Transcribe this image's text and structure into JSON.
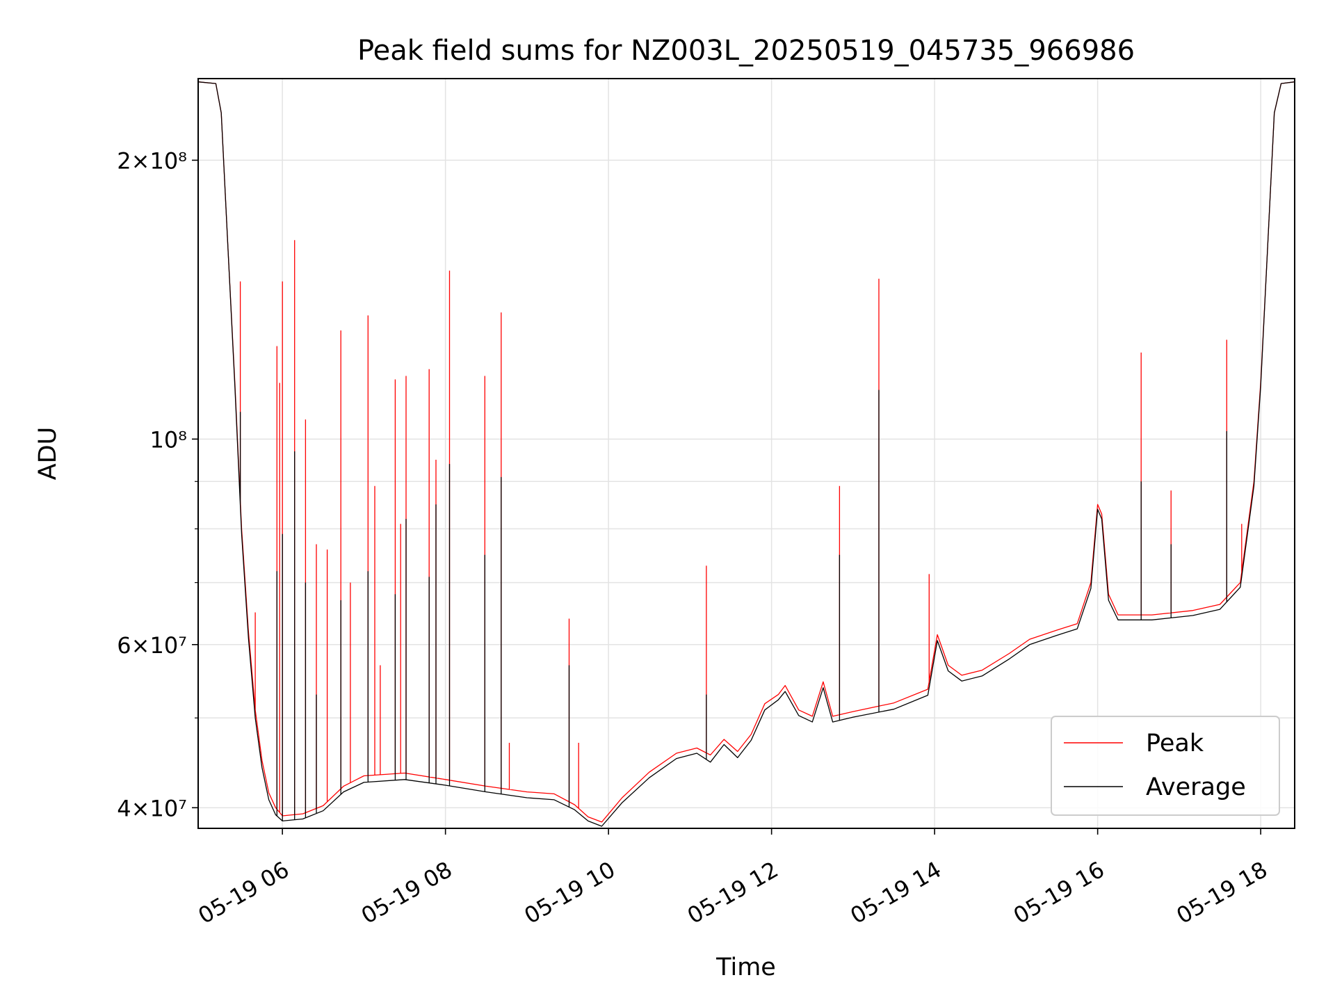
{
  "chart_data": {
    "type": "line",
    "title": "Peak field sums for NZ003L_20250519_045735_966986",
    "xlabel": "Time",
    "ylabel": "ADU",
    "y_scale": "log",
    "grid": true,
    "legend_position": "lower-right",
    "xlim": [
      "2025-05-19 04:58",
      "2025-05-19 18:25"
    ],
    "ylim": [
      38000000,
      245000000
    ],
    "x_ticks": [
      {
        "t": "2025-05-19 06:00",
        "label": "05-19 06"
      },
      {
        "t": "2025-05-19 08:00",
        "label": "05-19 08"
      },
      {
        "t": "2025-05-19 10:00",
        "label": "05-19 10"
      },
      {
        "t": "2025-05-19 12:00",
        "label": "05-19 12"
      },
      {
        "t": "2025-05-19 14:00",
        "label": "05-19 14"
      },
      {
        "t": "2025-05-19 16:00",
        "label": "05-19 16"
      },
      {
        "t": "2025-05-19 18:00",
        "label": "05-19 18"
      }
    ],
    "y_major_ticks": [
      {
        "value": 40000000,
        "label": "4×10⁷"
      },
      {
        "value": 60000000,
        "label": "6×10⁷"
      },
      {
        "value": 100000000,
        "label": "10⁸"
      },
      {
        "value": 200000000,
        "label": "2×10⁸"
      }
    ],
    "y_minor_gridlines": [
      50000000,
      70000000,
      80000000,
      90000000
    ],
    "series": [
      {
        "name": "Peak",
        "color": "#ff0000",
        "points": [
          [
            "2025-05-19 04:58",
            243000000
          ],
          [
            "2025-05-19 05:11",
            242000000
          ],
          [
            "2025-05-19 05:15",
            225000000
          ],
          [
            "2025-05-19 05:20",
            160000000
          ],
          [
            "2025-05-19 05:25",
            115000000
          ],
          [
            "2025-05-19 05:30",
            80000000
          ],
          [
            "2025-05-19 05:35",
            62000000
          ],
          [
            "2025-05-19 05:40",
            51000000
          ],
          [
            "2025-05-19 05:45",
            45000000
          ],
          [
            "2025-05-19 05:50",
            41500000
          ],
          [
            "2025-05-19 05:55",
            40000000
          ],
          [
            "2025-05-19 06:00",
            39200000
          ],
          [
            "2025-05-19 06:15",
            39400000
          ],
          [
            "2025-05-19 06:30",
            40200000
          ],
          [
            "2025-05-19 06:45",
            42200000
          ],
          [
            "2025-05-19 07:00",
            43300000
          ],
          [
            "2025-05-19 07:30",
            43600000
          ],
          [
            "2025-05-19 08:00",
            42900000
          ],
          [
            "2025-05-19 08:30",
            42200000
          ],
          [
            "2025-05-19 09:00",
            41600000
          ],
          [
            "2025-05-19 09:20",
            41400000
          ],
          [
            "2025-05-19 09:35",
            40300000
          ],
          [
            "2025-05-19 09:45",
            39100000
          ],
          [
            "2025-05-19 09:55",
            38600000
          ],
          [
            "2025-05-19 10:10",
            41000000
          ],
          [
            "2025-05-19 10:30",
            43700000
          ],
          [
            "2025-05-19 10:50",
            45800000
          ],
          [
            "2025-05-19 11:05",
            46400000
          ],
          [
            "2025-05-19 11:15",
            45600000
          ],
          [
            "2025-05-19 11:25",
            47400000
          ],
          [
            "2025-05-19 11:35",
            46000000
          ],
          [
            "2025-05-19 11:45",
            48000000
          ],
          [
            "2025-05-19 11:55",
            51800000
          ],
          [
            "2025-05-19 12:05",
            53000000
          ],
          [
            "2025-05-19 12:10",
            54200000
          ],
          [
            "2025-05-19 12:20",
            51000000
          ],
          [
            "2025-05-19 12:30",
            50200000
          ],
          [
            "2025-05-19 12:38",
            54700000
          ],
          [
            "2025-05-19 12:45",
            50200000
          ],
          [
            "2025-05-19 13:00",
            50800000
          ],
          [
            "2025-05-19 13:30",
            51900000
          ],
          [
            "2025-05-19 13:55",
            53700000
          ],
          [
            "2025-05-19 14:02",
            61500000
          ],
          [
            "2025-05-19 14:10",
            57000000
          ],
          [
            "2025-05-19 14:20",
            55600000
          ],
          [
            "2025-05-19 14:35",
            56300000
          ],
          [
            "2025-05-19 14:55",
            58700000
          ],
          [
            "2025-05-19 15:10",
            60800000
          ],
          [
            "2025-05-19 15:30",
            62200000
          ],
          [
            "2025-05-19 15:45",
            63200000
          ],
          [
            "2025-05-19 15:55",
            70000000
          ],
          [
            "2025-05-19 16:00",
            85000000
          ],
          [
            "2025-05-19 16:03",
            83000000
          ],
          [
            "2025-05-19 16:08",
            68000000
          ],
          [
            "2025-05-19 16:15",
            64600000
          ],
          [
            "2025-05-19 16:40",
            64600000
          ],
          [
            "2025-05-19 17:10",
            65300000
          ],
          [
            "2025-05-19 17:30",
            66300000
          ],
          [
            "2025-05-19 17:45",
            70000000
          ],
          [
            "2025-05-19 17:55",
            90000000
          ],
          [
            "2025-05-19 18:00",
            115000000
          ],
          [
            "2025-05-19 18:05",
            160000000
          ],
          [
            "2025-05-19 18:10",
            225000000
          ],
          [
            "2025-05-19 18:15",
            242000000
          ],
          [
            "2025-05-19 18:25",
            243000000
          ]
        ],
        "spikes": [
          [
            "2025-05-19 05:29",
            148000000
          ],
          [
            "2025-05-19 05:40",
            65000000
          ],
          [
            "2025-05-19 05:56",
            126000000
          ],
          [
            "2025-05-19 05:58",
            115000000
          ],
          [
            "2025-05-19 06:00",
            148000000
          ],
          [
            "2025-05-19 06:09",
            164000000
          ],
          [
            "2025-05-19 06:17",
            105000000
          ],
          [
            "2025-05-19 06:25",
            77000000
          ],
          [
            "2025-05-19 06:33",
            76000000
          ],
          [
            "2025-05-19 06:43",
            131000000
          ],
          [
            "2025-05-19 06:50",
            70000000
          ],
          [
            "2025-05-19 07:03",
            136000000
          ],
          [
            "2025-05-19 07:08",
            89000000
          ],
          [
            "2025-05-19 07:12",
            57000000
          ],
          [
            "2025-05-19 07:23",
            116000000
          ],
          [
            "2025-05-19 07:27",
            81000000
          ],
          [
            "2025-05-19 07:31",
            117000000
          ],
          [
            "2025-05-19 07:48",
            119000000
          ],
          [
            "2025-05-19 07:53",
            95000000
          ],
          [
            "2025-05-19 08:03",
            152000000
          ],
          [
            "2025-05-19 08:29",
            117000000
          ],
          [
            "2025-05-19 08:41",
            137000000
          ],
          [
            "2025-05-19 08:47",
            47000000
          ],
          [
            "2025-05-19 09:31",
            64000000
          ],
          [
            "2025-05-19 09:38",
            47000000
          ],
          [
            "2025-05-19 11:12",
            73000000
          ],
          [
            "2025-05-19 12:50",
            89000000
          ],
          [
            "2025-05-19 13:19",
            149000000
          ],
          [
            "2025-05-19 13:56",
            71500000
          ],
          [
            "2025-05-19 16:32",
            124000000
          ],
          [
            "2025-05-19 16:54",
            88000000
          ],
          [
            "2025-05-19 17:35",
            128000000
          ],
          [
            "2025-05-19 17:46",
            81000000
          ]
        ]
      },
      {
        "name": "Average",
        "color": "#000000",
        "points": [
          [
            "2025-05-19 04:58",
            243000000
          ],
          [
            "2025-05-19 05:11",
            242000000
          ],
          [
            "2025-05-19 05:15",
            225000000
          ],
          [
            "2025-05-19 05:20",
            160000000
          ],
          [
            "2025-05-19 05:25",
            114000000
          ],
          [
            "2025-05-19 05:30",
            79000000
          ],
          [
            "2025-05-19 05:35",
            61000000
          ],
          [
            "2025-05-19 05:40",
            50000000
          ],
          [
            "2025-05-19 05:45",
            44200000
          ],
          [
            "2025-05-19 05:50",
            40800000
          ],
          [
            "2025-05-19 05:55",
            39300000
          ],
          [
            "2025-05-19 06:00",
            38700000
          ],
          [
            "2025-05-19 06:15",
            38900000
          ],
          [
            "2025-05-19 06:30",
            39700000
          ],
          [
            "2025-05-19 06:45",
            41600000
          ],
          [
            "2025-05-19 07:00",
            42600000
          ],
          [
            "2025-05-19 07:30",
            42900000
          ],
          [
            "2025-05-19 08:00",
            42300000
          ],
          [
            "2025-05-19 08:30",
            41600000
          ],
          [
            "2025-05-19 09:00",
            41000000
          ],
          [
            "2025-05-19 09:20",
            40800000
          ],
          [
            "2025-05-19 09:35",
            39800000
          ],
          [
            "2025-05-19 09:45",
            38700000
          ],
          [
            "2025-05-19 09:55",
            38200000
          ],
          [
            "2025-05-19 10:10",
            40500000
          ],
          [
            "2025-05-19 10:30",
            43100000
          ],
          [
            "2025-05-19 10:50",
            45200000
          ],
          [
            "2025-05-19 11:05",
            45800000
          ],
          [
            "2025-05-19 11:15",
            44800000
          ],
          [
            "2025-05-19 11:25",
            46800000
          ],
          [
            "2025-05-19 11:35",
            45300000
          ],
          [
            "2025-05-19 11:45",
            47300000
          ],
          [
            "2025-05-19 11:55",
            51000000
          ],
          [
            "2025-05-19 12:05",
            52300000
          ],
          [
            "2025-05-19 12:10",
            53400000
          ],
          [
            "2025-05-19 12:20",
            50300000
          ],
          [
            "2025-05-19 12:30",
            49500000
          ],
          [
            "2025-05-19 12:38",
            53900000
          ],
          [
            "2025-05-19 12:45",
            49500000
          ],
          [
            "2025-05-19 13:00",
            50100000
          ],
          [
            "2025-05-19 13:30",
            51100000
          ],
          [
            "2025-05-19 13:55",
            52900000
          ],
          [
            "2025-05-19 14:02",
            60600000
          ],
          [
            "2025-05-19 14:10",
            56200000
          ],
          [
            "2025-05-19 14:20",
            54800000
          ],
          [
            "2025-05-19 14:35",
            55500000
          ],
          [
            "2025-05-19 14:55",
            57900000
          ],
          [
            "2025-05-19 15:10",
            60000000
          ],
          [
            "2025-05-19 15:30",
            61400000
          ],
          [
            "2025-05-19 15:45",
            62400000
          ],
          [
            "2025-05-19 15:55",
            69000000
          ],
          [
            "2025-05-19 16:00",
            84000000
          ],
          [
            "2025-05-19 16:03",
            82000000
          ],
          [
            "2025-05-19 16:08",
            67000000
          ],
          [
            "2025-05-19 16:15",
            63800000
          ],
          [
            "2025-05-19 16:40",
            63800000
          ],
          [
            "2025-05-19 17:10",
            64500000
          ],
          [
            "2025-05-19 17:30",
            65500000
          ],
          [
            "2025-05-19 17:45",
            69200000
          ],
          [
            "2025-05-19 17:55",
            89000000
          ],
          [
            "2025-05-19 18:00",
            114000000
          ],
          [
            "2025-05-19 18:05",
            160000000
          ],
          [
            "2025-05-19 18:10",
            225000000
          ],
          [
            "2025-05-19 18:15",
            242000000
          ],
          [
            "2025-05-19 18:25",
            243000000
          ]
        ],
        "spikes": [
          [
            "2025-05-19 05:29",
            107000000
          ],
          [
            "2025-05-19 05:56",
            72000000
          ],
          [
            "2025-05-19 06:00",
            79000000
          ],
          [
            "2025-05-19 06:09",
            97000000
          ],
          [
            "2025-05-19 06:17",
            70000000
          ],
          [
            "2025-05-19 06:25",
            53000000
          ],
          [
            "2025-05-19 06:43",
            67000000
          ],
          [
            "2025-05-19 07:03",
            72000000
          ],
          [
            "2025-05-19 07:23",
            68000000
          ],
          [
            "2025-05-19 07:31",
            82000000
          ],
          [
            "2025-05-19 07:48",
            71000000
          ],
          [
            "2025-05-19 07:53",
            85000000
          ],
          [
            "2025-05-19 08:03",
            94000000
          ],
          [
            "2025-05-19 08:29",
            75000000
          ],
          [
            "2025-05-19 08:41",
            91000000
          ],
          [
            "2025-05-19 09:31",
            57000000
          ],
          [
            "2025-05-19 11:12",
            53000000
          ],
          [
            "2025-05-19 12:50",
            75000000
          ],
          [
            "2025-05-19 13:19",
            113000000
          ],
          [
            "2025-05-19 16:32",
            90000000
          ],
          [
            "2025-05-19 16:54",
            77000000
          ],
          [
            "2025-05-19 17:35",
            102000000
          ]
        ]
      }
    ]
  }
}
